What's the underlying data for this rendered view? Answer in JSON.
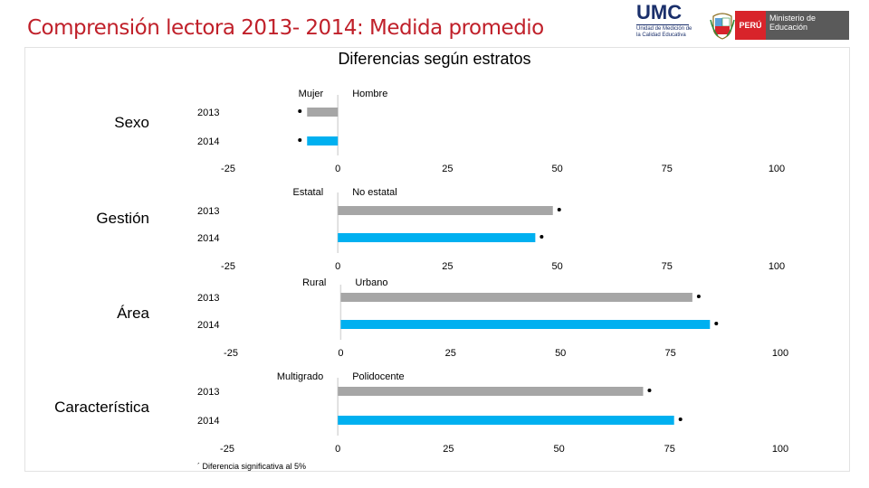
{
  "header": {
    "title": "Comprensión lectora 2013- 2014: Medida promedio",
    "subtitle": "Diferencias según estratos",
    "umc_logo_text": "UMC",
    "umc_logo_subtext": "Unidad de Medición de la Calidad Educativa",
    "peru_badge": "PERÚ",
    "ministry_text": "Ministerio de Educación"
  },
  "footnote": "´ Diferencia significativa al 5%",
  "colors": {
    "series_2013": "#a6a6a6",
    "series_2014": "#00b0f0",
    "title_red": "#c0202a",
    "axis": "#d9d9d9"
  },
  "chart_data": [
    {
      "type": "bar",
      "orientation": "horizontal",
      "group_label": "Sexo",
      "left_label": "Mujer",
      "right_label": "Hombre",
      "categories": [
        "2013",
        "2014"
      ],
      "values": [
        -7,
        -7
      ],
      "significant": [
        true,
        true
      ],
      "xlim": [
        -25,
        100
      ],
      "xticks": [
        "-25",
        "0",
        "25",
        "50",
        "75",
        "100"
      ]
    },
    {
      "type": "bar",
      "orientation": "horizontal",
      "group_label": "Gestión",
      "left_label": "Estatal",
      "right_label": "No estatal",
      "categories": [
        "2013",
        "2014"
      ],
      "values": [
        49,
        45
      ],
      "significant": [
        true,
        true
      ],
      "xlim": [
        -25,
        100
      ],
      "xticks": [
        "-25",
        "0",
        "25",
        "50",
        "75",
        "100"
      ]
    },
    {
      "type": "bar",
      "orientation": "horizontal",
      "group_label": "Área",
      "left_label": "Rural",
      "right_label": "Urbano",
      "categories": [
        "2013",
        "2014"
      ],
      "values": [
        80,
        84
      ],
      "significant": [
        true,
        true
      ],
      "xlim": [
        -25,
        100
      ],
      "xticks": [
        "-25",
        "0",
        "25",
        "50",
        "75",
        "100"
      ]
    },
    {
      "type": "bar",
      "orientation": "horizontal",
      "group_label": "Característica",
      "left_label": "Multigrado",
      "right_label": "Polidocente",
      "categories": [
        "2013",
        "2014"
      ],
      "values": [
        69,
        76
      ],
      "significant": [
        true,
        true
      ],
      "xlim": [
        -25,
        100
      ],
      "xticks": [
        "-25",
        "0",
        "25",
        "50",
        "75",
        "100"
      ]
    }
  ]
}
